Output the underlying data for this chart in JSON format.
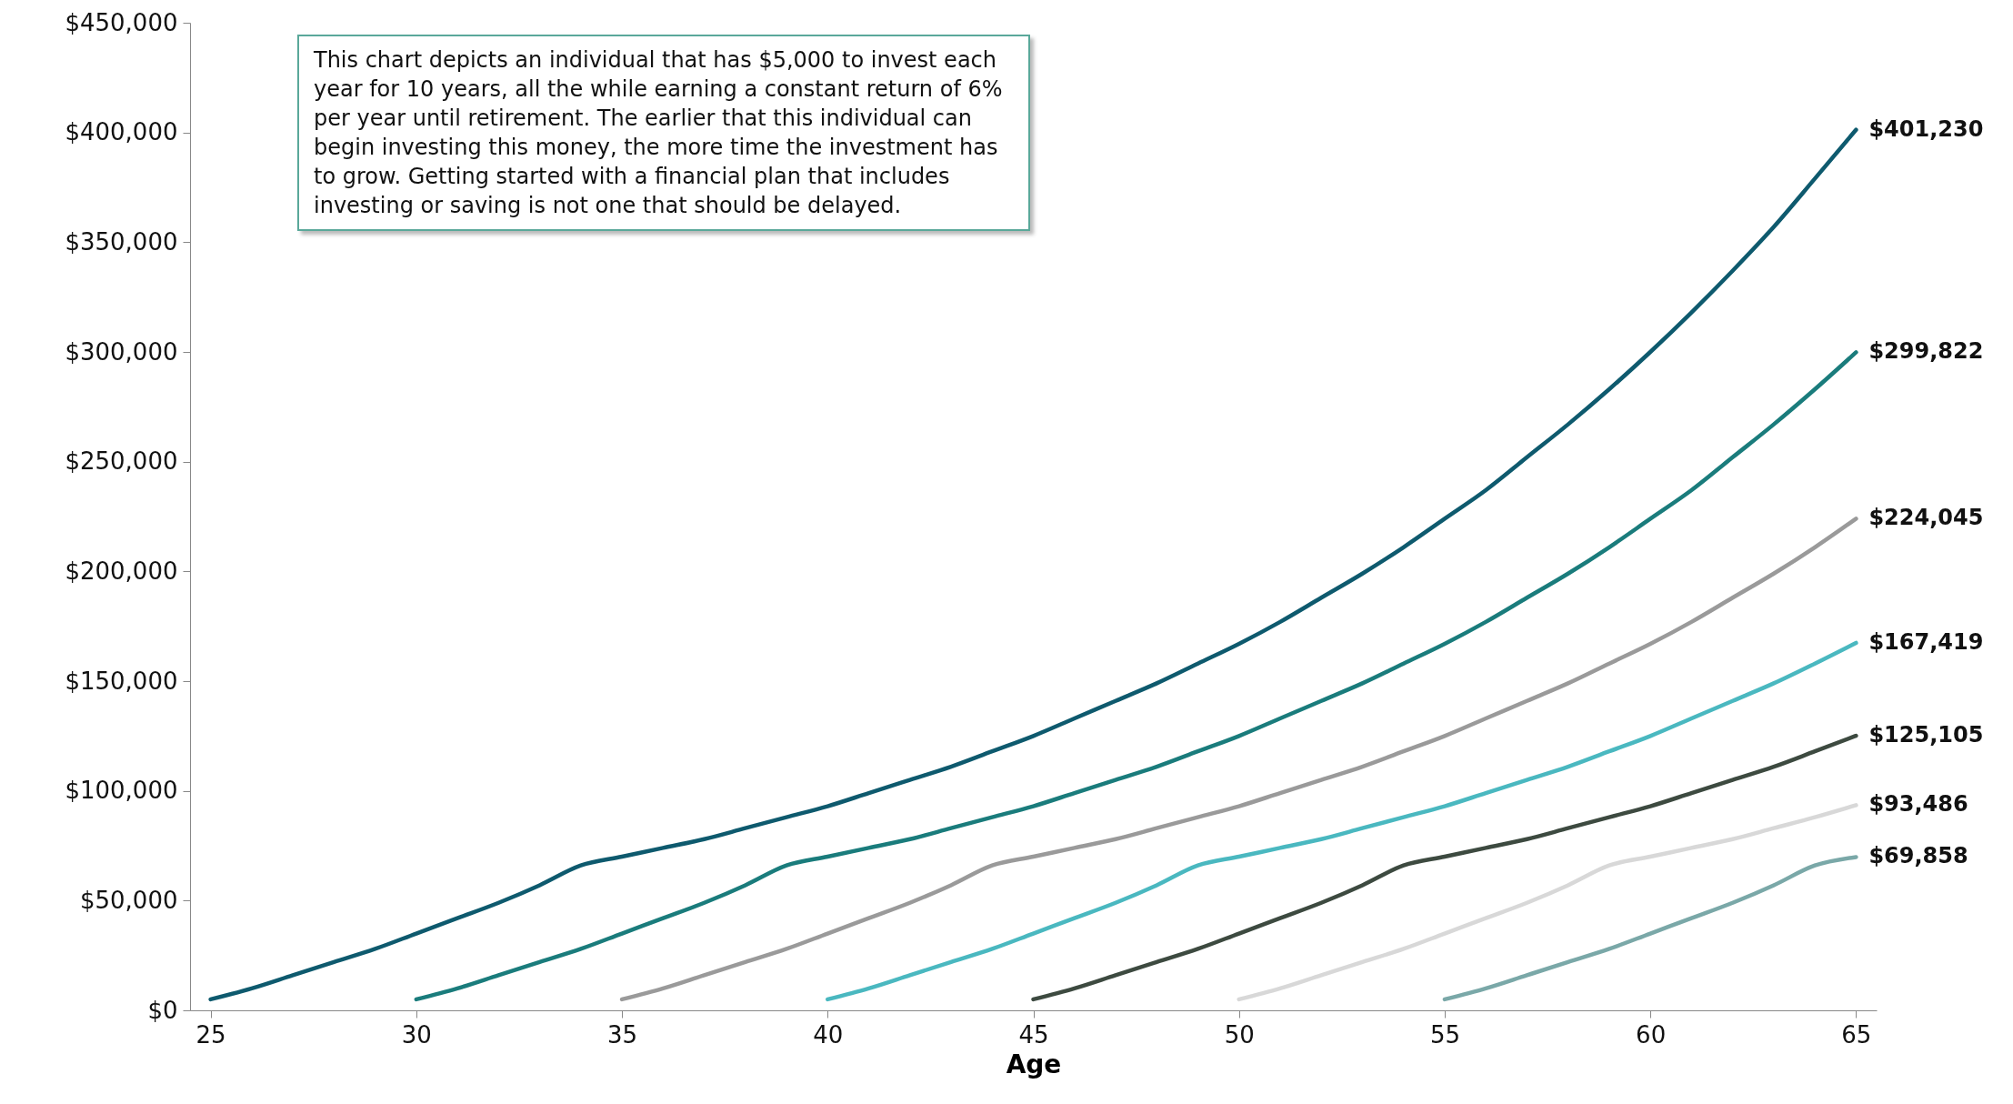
{
  "chart_data": {
    "type": "line",
    "xlabel": "Age",
    "xlim": [
      24.5,
      65.5
    ],
    "xticks": [
      25,
      30,
      35,
      40,
      45,
      50,
      55,
      60,
      65
    ],
    "ylim": [
      0,
      450000
    ],
    "yticks": [
      {
        "value": 0,
        "label": "$0"
      },
      {
        "value": 50000,
        "label": "$50,000"
      },
      {
        "value": 100000,
        "label": "$100,000"
      },
      {
        "value": 150000,
        "label": "$150,000"
      },
      {
        "value": 200000,
        "label": "$200,000"
      },
      {
        "value": 250000,
        "label": "$250,000"
      },
      {
        "value": 300000,
        "label": "$300,000"
      },
      {
        "value": 350000,
        "label": "$350,000"
      },
      {
        "value": 400000,
        "label": "$400,000"
      },
      {
        "value": 450000,
        "label": "$450,000"
      }
    ],
    "grid": false,
    "legend": false,
    "marker": "none",
    "line_style": "solid",
    "annotations": [
      "This chart depicts an individual that has $5,000 to invest each year for 10 years, all the while earning a constant return of 6% per year until retirement.  The earlier that this individual can begin investing this money, the more time the investment has to grow. Getting started with a financial plan that includes investing or saving is not one that should be delayed."
    ],
    "series": [
      {
        "color": "#0e5a6e",
        "x": [
          25,
          26,
          27,
          28,
          29,
          30,
          31,
          32,
          33,
          34,
          35,
          36,
          37,
          38,
          39,
          40,
          41,
          42,
          43,
          44,
          45,
          46,
          47,
          48,
          49,
          50,
          51,
          52,
          53,
          54,
          55,
          56,
          57,
          58,
          59,
          60,
          61,
          62,
          63,
          64,
          65
        ],
        "values": [
          5000,
          10000,
          16000,
          22000,
          28000,
          35000,
          42000,
          49000,
          57000,
          66000,
          70000,
          74000,
          78000,
          83000,
          88000,
          93000,
          99000,
          105000,
          111000,
          118000,
          125000,
          133000,
          141000,
          149000,
          158000,
          167000,
          177000,
          188000,
          199000,
          211000,
          224000,
          237000,
          252000,
          267000,
          283000,
          300000,
          318000,
          337000,
          357000,
          379000,
          401230
        ],
        "value_labels": [
          null,
          null,
          null,
          null,
          null,
          null,
          null,
          null,
          null,
          null,
          null,
          null,
          null,
          null,
          null,
          null,
          null,
          null,
          null,
          null,
          null,
          null,
          null,
          null,
          null,
          null,
          null,
          null,
          null,
          null,
          null,
          null,
          null,
          null,
          null,
          null,
          null,
          null,
          null,
          null,
          "$401,230"
        ]
      },
      {
        "color": "#1a7c7c",
        "x": [
          30,
          31,
          32,
          33,
          34,
          35,
          36,
          37,
          38,
          39,
          40,
          41,
          42,
          43,
          44,
          45,
          46,
          47,
          48,
          49,
          50,
          51,
          52,
          53,
          54,
          55,
          56,
          57,
          58,
          59,
          60,
          61,
          62,
          63,
          64,
          65
        ],
        "values": [
          5000,
          10000,
          16000,
          22000,
          28000,
          35000,
          42000,
          49000,
          57000,
          66000,
          70000,
          74000,
          78000,
          83000,
          88000,
          93000,
          99000,
          105000,
          111000,
          118000,
          125000,
          133000,
          141000,
          149000,
          158000,
          167000,
          177000,
          188000,
          199000,
          211000,
          224000,
          237000,
          252000,
          267000,
          283000,
          299822
        ],
        "value_labels": [
          null,
          null,
          null,
          null,
          null,
          null,
          null,
          null,
          null,
          null,
          null,
          null,
          null,
          null,
          null,
          null,
          null,
          null,
          null,
          null,
          null,
          null,
          null,
          null,
          null,
          null,
          null,
          null,
          null,
          null,
          null,
          null,
          null,
          null,
          null,
          "$299,822"
        ]
      },
      {
        "color": "#9a9a9a",
        "x": [
          35,
          36,
          37,
          38,
          39,
          40,
          41,
          42,
          43,
          44,
          45,
          46,
          47,
          48,
          49,
          50,
          51,
          52,
          53,
          54,
          55,
          56,
          57,
          58,
          59,
          60,
          61,
          62,
          63,
          64,
          65
        ],
        "values": [
          5000,
          10000,
          16000,
          22000,
          28000,
          35000,
          42000,
          49000,
          57000,
          66000,
          70000,
          74000,
          78000,
          83000,
          88000,
          93000,
          99000,
          105000,
          111000,
          118000,
          125000,
          133000,
          141000,
          149000,
          158000,
          167000,
          177000,
          188000,
          199000,
          211000,
          224045
        ],
        "value_labels": [
          null,
          null,
          null,
          null,
          null,
          null,
          null,
          null,
          null,
          null,
          null,
          null,
          null,
          null,
          null,
          null,
          null,
          null,
          null,
          null,
          null,
          null,
          null,
          null,
          null,
          null,
          null,
          null,
          null,
          null,
          "$224,045"
        ]
      },
      {
        "color": "#4ab8c0",
        "x": [
          40,
          41,
          42,
          43,
          44,
          45,
          46,
          47,
          48,
          49,
          50,
          51,
          52,
          53,
          54,
          55,
          56,
          57,
          58,
          59,
          60,
          61,
          62,
          63,
          64,
          65
        ],
        "values": [
          5000,
          10000,
          16000,
          22000,
          28000,
          35000,
          42000,
          49000,
          57000,
          66000,
          70000,
          74000,
          78000,
          83000,
          88000,
          93000,
          99000,
          105000,
          111000,
          118000,
          125000,
          133000,
          141000,
          149000,
          158000,
          167419
        ],
        "value_labels": [
          null,
          null,
          null,
          null,
          null,
          null,
          null,
          null,
          null,
          null,
          null,
          null,
          null,
          null,
          null,
          null,
          null,
          null,
          null,
          null,
          null,
          null,
          null,
          null,
          null,
          "$167,419"
        ]
      },
      {
        "color": "#3d4a40",
        "x": [
          45,
          46,
          47,
          48,
          49,
          50,
          51,
          52,
          53,
          54,
          55,
          56,
          57,
          58,
          59,
          60,
          61,
          62,
          63,
          64,
          65
        ],
        "values": [
          5000,
          10000,
          16000,
          22000,
          28000,
          35000,
          42000,
          49000,
          57000,
          66000,
          70000,
          74000,
          78000,
          83000,
          88000,
          93000,
          99000,
          105000,
          111000,
          118000,
          125105
        ],
        "value_labels": [
          null,
          null,
          null,
          null,
          null,
          null,
          null,
          null,
          null,
          null,
          null,
          null,
          null,
          null,
          null,
          null,
          null,
          null,
          null,
          null,
          "$125,105"
        ]
      },
      {
        "color": "#d8d8d8",
        "x": [
          50,
          51,
          52,
          53,
          54,
          55,
          56,
          57,
          58,
          59,
          60,
          61,
          62,
          63,
          64,
          65
        ],
        "values": [
          5000,
          10000,
          16000,
          22000,
          28000,
          35000,
          42000,
          49000,
          57000,
          66000,
          70000,
          74000,
          78000,
          83000,
          88000,
          93486
        ],
        "value_labels": [
          null,
          null,
          null,
          null,
          null,
          null,
          null,
          null,
          null,
          null,
          null,
          null,
          null,
          null,
          null,
          "$93,486"
        ]
      },
      {
        "color": "#7aa8a8",
        "x": [
          55,
          56,
          57,
          58,
          59,
          60,
          61,
          62,
          63,
          64,
          65
        ],
        "values": [
          5000,
          10000,
          16000,
          22000,
          28000,
          35000,
          42000,
          49000,
          57000,
          66000,
          69858
        ],
        "value_labels": [
          null,
          null,
          null,
          null,
          null,
          null,
          null,
          null,
          null,
          null,
          "$69,858"
        ]
      }
    ]
  }
}
